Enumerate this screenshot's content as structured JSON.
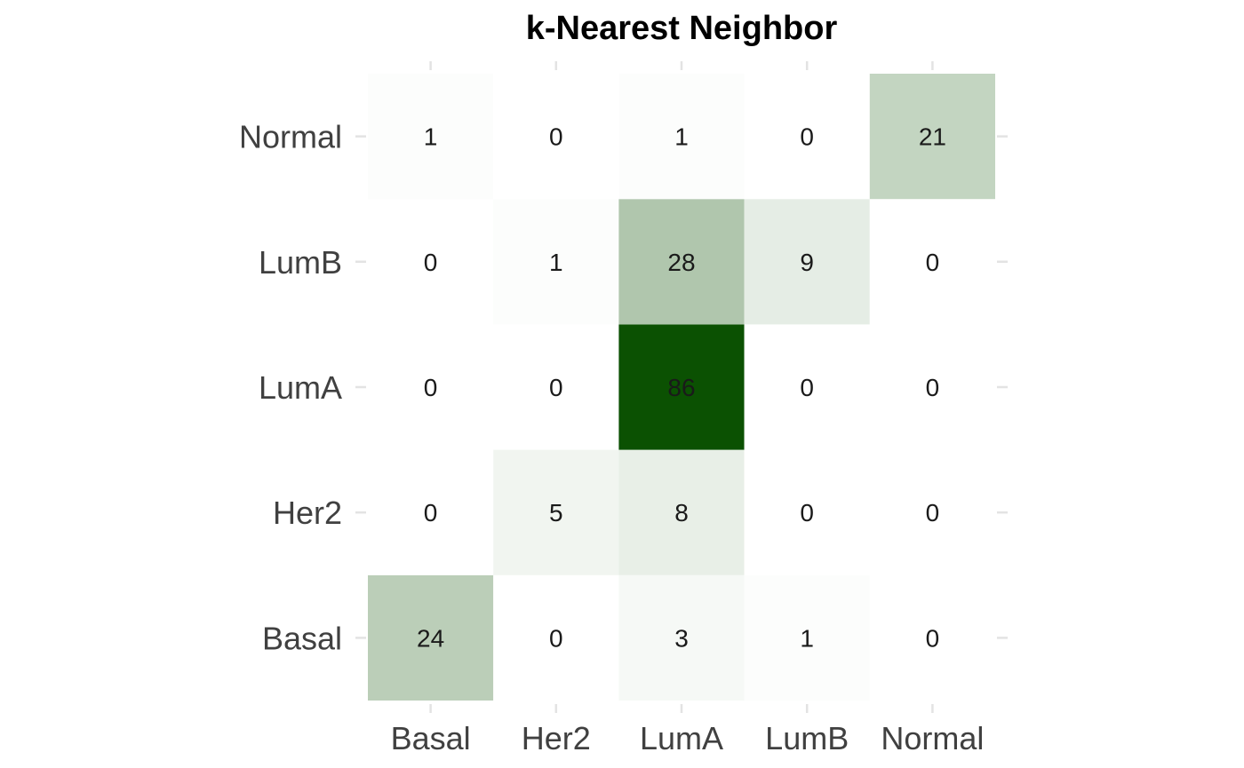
{
  "chart_data": {
    "type": "heatmap",
    "title": "k-Nearest Neighbor",
    "xlabel": "",
    "ylabel": "",
    "x_categories": [
      "Basal",
      "Her2",
      "LumA",
      "LumB",
      "Normal"
    ],
    "y_categories": [
      "Basal",
      "Her2",
      "LumA",
      "LumB",
      "Normal"
    ],
    "values": [
      [
        24,
        0,
        3,
        1,
        0
      ],
      [
        0,
        5,
        8,
        0,
        0
      ],
      [
        0,
        0,
        86,
        0,
        0
      ],
      [
        0,
        1,
        28,
        9,
        0
      ],
      [
        1,
        0,
        1,
        0,
        21
      ]
    ],
    "color_low": "#ffffff",
    "color_high": "#0b5102",
    "grid": false,
    "legend": "none"
  }
}
